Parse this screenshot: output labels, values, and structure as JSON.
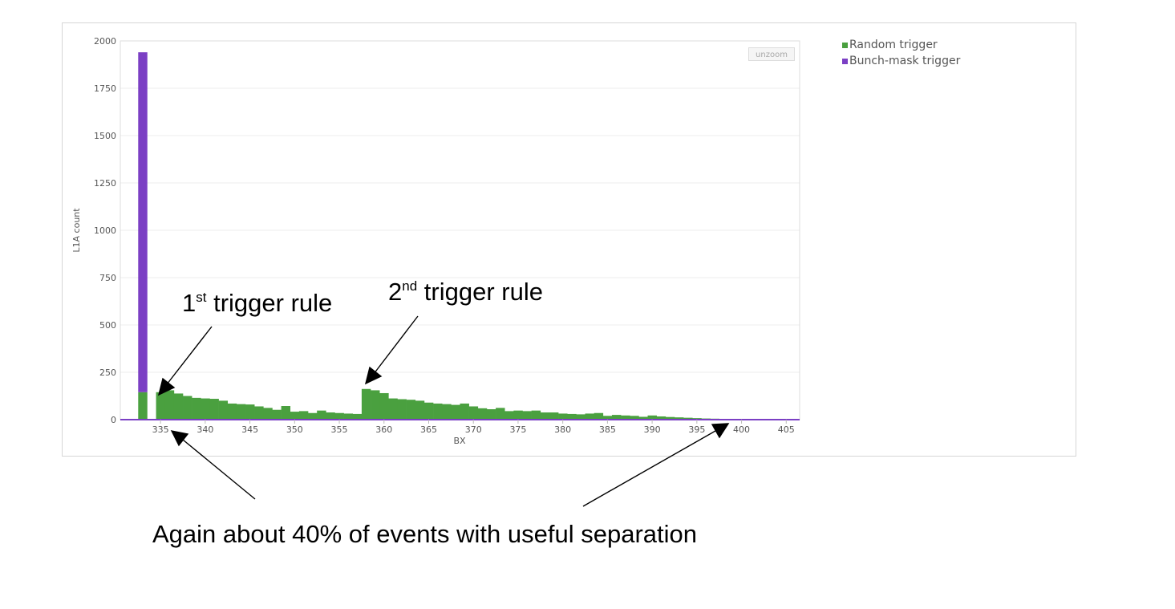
{
  "chart_data": {
    "type": "bar",
    "stacked": true,
    "xlabel": "BX",
    "ylabel": "L1A count",
    "xlim": [
      330.5,
      406.5
    ],
    "ylim": [
      0,
      2000
    ],
    "yticks": [
      0,
      250,
      500,
      750,
      1000,
      1250,
      1500,
      1750,
      2000
    ],
    "xticks": [
      335,
      340,
      345,
      350,
      355,
      360,
      365,
      370,
      375,
      380,
      385,
      390,
      395,
      400,
      405
    ],
    "grid": true,
    "legend_position": "top-right outside",
    "series": [
      {
        "name": "Random trigger",
        "color": "#4aa03f",
        "x": [
          333,
          334,
          335,
          336,
          337,
          338,
          339,
          340,
          341,
          342,
          343,
          344,
          345,
          346,
          347,
          348,
          349,
          350,
          351,
          352,
          353,
          354,
          355,
          356,
          357,
          358,
          359,
          360,
          361,
          362,
          363,
          364,
          365,
          366,
          367,
          368,
          369,
          370,
          371,
          372,
          373,
          374,
          375,
          376,
          377,
          378,
          379,
          380,
          381,
          382,
          383,
          384,
          385,
          386,
          387,
          388,
          389,
          390,
          391,
          392,
          393,
          394,
          395,
          396,
          397,
          398,
          399,
          400,
          401,
          402,
          403,
          404,
          405,
          406
        ],
        "values": [
          145,
          0,
          145,
          155,
          138,
          125,
          115,
          112,
          110,
          100,
          85,
          82,
          80,
          70,
          62,
          52,
          72,
          42,
          45,
          35,
          48,
          38,
          35,
          32,
          30,
          162,
          155,
          140,
          112,
          108,
          105,
          100,
          90,
          85,
          82,
          78,
          85,
          70,
          60,
          55,
          62,
          45,
          48,
          45,
          48,
          38,
          38,
          32,
          30,
          28,
          32,
          35,
          20,
          25,
          22,
          20,
          15,
          22,
          17,
          14,
          12,
          10,
          8,
          6,
          5,
          4,
          4,
          3,
          3,
          2,
          2,
          1,
          1,
          0
        ]
      },
      {
        "name": "Bunch-mask trigger",
        "color": "#7b3fc4",
        "x": [
          333
        ],
        "values": [
          1795
        ]
      }
    ]
  },
  "ui": {
    "unzoom_label": "unzoom"
  },
  "annotations": {
    "first_rule": {
      "number": "1",
      "sup": "st",
      "text": " trigger rule"
    },
    "second_rule": {
      "number": "2",
      "sup": "nd",
      "text": " trigger rule"
    },
    "bottom": "Again about 40% of events with useful separation"
  }
}
